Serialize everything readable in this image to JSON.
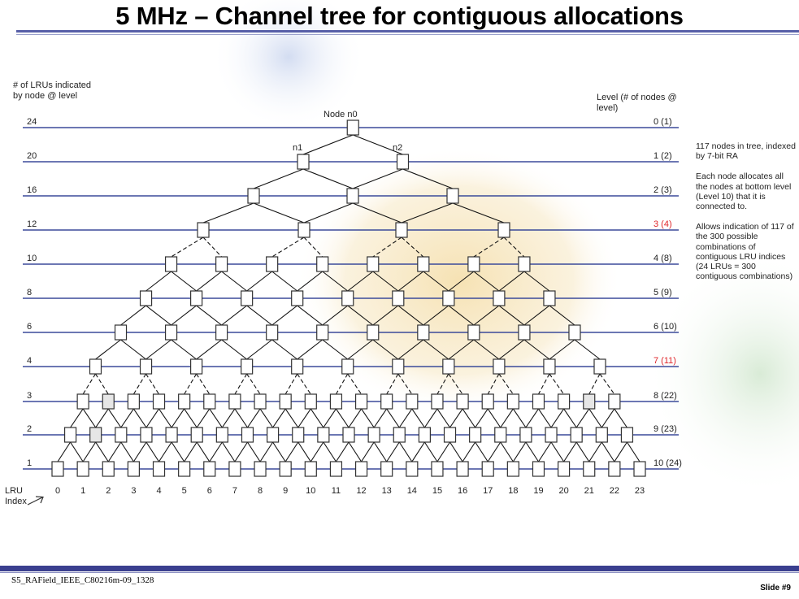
{
  "slide": {
    "title": "5 MHz – Channel tree for contiguous allocations",
    "footer_doc": "S5_RAField_IEEE_C80216m-09_1328",
    "footer_slide": "Slide #9"
  },
  "diagram": {
    "left_header": "# of LRUs indicated\nby node @ level",
    "right_header": "Level (# of nodes @\nlevel)",
    "root_label": "Node n0",
    "node_labels": [
      "n1",
      "n2"
    ],
    "x_axis_label": "LRU\nIndex",
    "levels": [
      {
        "lrus": "24",
        "label": "0 (1)",
        "highlight": false
      },
      {
        "lrus": "20",
        "label": "1 (2)",
        "highlight": false
      },
      {
        "lrus": "16",
        "label": "2 (3)",
        "highlight": false
      },
      {
        "lrus": "12",
        "label": "3 (4)",
        "highlight": true
      },
      {
        "lrus": "10",
        "label": "4 (8)",
        "highlight": false
      },
      {
        "lrus": "8",
        "label": "5 (9)",
        "highlight": false
      },
      {
        "lrus": "6",
        "label": "6 (10)",
        "highlight": false
      },
      {
        "lrus": "4",
        "label": "7 (11)",
        "highlight": true
      },
      {
        "lrus": "3",
        "label": "8 (22)",
        "highlight": false
      },
      {
        "lrus": "2",
        "label": "9 (23)",
        "highlight": false
      },
      {
        "lrus": "1",
        "label": "10 (24)",
        "highlight": false
      }
    ],
    "lru_indices": [
      "0",
      "1",
      "2",
      "3",
      "4",
      "5",
      "6",
      "7",
      "8",
      "9",
      "10",
      "11",
      "12",
      "13",
      "14",
      "15",
      "16",
      "17",
      "18",
      "19",
      "20",
      "21",
      "22",
      "23"
    ],
    "colors": {
      "line": "#3b4a9a",
      "highlight": "#e0262a",
      "node_border": "#333333"
    }
  },
  "notes": [
    "117 nodes in tree, indexed by 7-bit RA",
    "Each node allocates all the nodes at bottom level (Level 10) that it is connected to.",
    "Allows indication of 117 of the 300 possible combinations of contiguous LRU indices (24 LRUs = 300 contiguous combinations)"
  ]
}
